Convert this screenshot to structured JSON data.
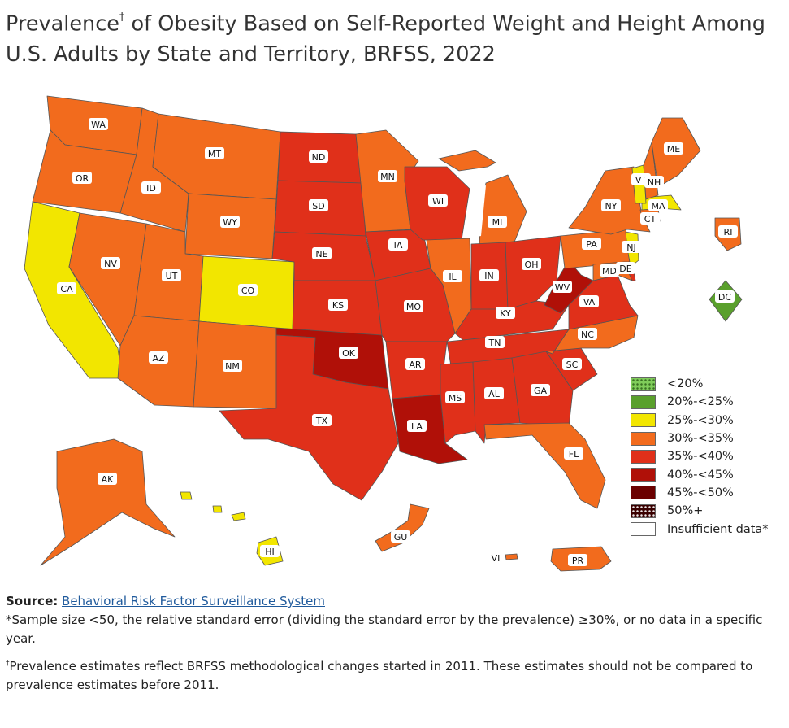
{
  "title": {
    "part1": "Prevalence",
    "dagger": "†",
    "part2": " of Obesity Based on Self-Reported Weight and Height Among U.S. Adults by State and Territory, BRFSS, 2022"
  },
  "legend": [
    {
      "label": "<20%",
      "color": "#7fcc5a",
      "pattern": "dots"
    },
    {
      "label": "20%-<25%",
      "color": "#5aa02c"
    },
    {
      "label": "25%-<30%",
      "color": "#f2e600"
    },
    {
      "label": "30%-<35%",
      "color": "#f26b1d"
    },
    {
      "label": "35%-<40%",
      "color": "#e0301a"
    },
    {
      "label": "40%-<45%",
      "color": "#b01008"
    },
    {
      "label": "45%-<50%",
      "color": "#6b0000"
    },
    {
      "label": "50%+",
      "color": "#3a0000",
      "pattern": "dots"
    },
    {
      "label": "Insufficient data*",
      "color": "#ffffff"
    }
  ],
  "states": [
    {
      "abbr": "WA",
      "category": "30%-<35%"
    },
    {
      "abbr": "OR",
      "category": "30%-<35%"
    },
    {
      "abbr": "CA",
      "category": "25%-<30%"
    },
    {
      "abbr": "NV",
      "category": "30%-<35%"
    },
    {
      "abbr": "ID",
      "category": "30%-<35%"
    },
    {
      "abbr": "MT",
      "category": "30%-<35%"
    },
    {
      "abbr": "WY",
      "category": "30%-<35%"
    },
    {
      "abbr": "UT",
      "category": "30%-<35%"
    },
    {
      "abbr": "CO",
      "category": "25%-<30%"
    },
    {
      "abbr": "AZ",
      "category": "30%-<35%"
    },
    {
      "abbr": "NM",
      "category": "30%-<35%"
    },
    {
      "abbr": "ND",
      "category": "35%-<40%"
    },
    {
      "abbr": "SD",
      "category": "35%-<40%"
    },
    {
      "abbr": "NE",
      "category": "35%-<40%"
    },
    {
      "abbr": "KS",
      "category": "35%-<40%"
    },
    {
      "abbr": "OK",
      "category": "40%-<45%"
    },
    {
      "abbr": "TX",
      "category": "35%-<40%"
    },
    {
      "abbr": "MN",
      "category": "30%-<35%"
    },
    {
      "abbr": "IA",
      "category": "35%-<40%"
    },
    {
      "abbr": "MO",
      "category": "35%-<40%"
    },
    {
      "abbr": "AR",
      "category": "35%-<40%"
    },
    {
      "abbr": "LA",
      "category": "40%-<45%"
    },
    {
      "abbr": "WI",
      "category": "35%-<40%"
    },
    {
      "abbr": "IL",
      "category": "30%-<35%"
    },
    {
      "abbr": "MI",
      "category": "30%-<35%"
    },
    {
      "abbr": "IN",
      "category": "35%-<40%"
    },
    {
      "abbr": "OH",
      "category": "35%-<40%"
    },
    {
      "abbr": "KY",
      "category": "35%-<40%"
    },
    {
      "abbr": "TN",
      "category": "35%-<40%"
    },
    {
      "abbr": "MS",
      "category": "35%-<40%"
    },
    {
      "abbr": "AL",
      "category": "35%-<40%"
    },
    {
      "abbr": "GA",
      "category": "35%-<40%"
    },
    {
      "abbr": "FL",
      "category": "30%-<35%"
    },
    {
      "abbr": "SC",
      "category": "35%-<40%"
    },
    {
      "abbr": "NC",
      "category": "30%-<35%"
    },
    {
      "abbr": "VA",
      "category": "35%-<40%"
    },
    {
      "abbr": "WV",
      "category": "40%-<45%"
    },
    {
      "abbr": "PA",
      "category": "30%-<35%"
    },
    {
      "abbr": "NY",
      "category": "30%-<35%"
    },
    {
      "abbr": "MD",
      "category": "30%-<35%"
    },
    {
      "abbr": "DE",
      "category": "35%-<40%"
    },
    {
      "abbr": "NJ",
      "category": "25%-<30%"
    },
    {
      "abbr": "CT",
      "category": "30%-<35%"
    },
    {
      "abbr": "RI",
      "category": "30%-<35%"
    },
    {
      "abbr": "MA",
      "category": "25%-<30%"
    },
    {
      "abbr": "VT",
      "category": "25%-<30%"
    },
    {
      "abbr": "NH",
      "category": "30%-<35%"
    },
    {
      "abbr": "ME",
      "category": "30%-<35%"
    },
    {
      "abbr": "DC",
      "category": "20%-<25%"
    },
    {
      "abbr": "AK",
      "category": "30%-<35%"
    },
    {
      "abbr": "HI",
      "category": "25%-<30%"
    },
    {
      "abbr": "GU",
      "category": "30%-<35%"
    },
    {
      "abbr": "VI",
      "category": "30%-<35%"
    },
    {
      "abbr": "PR",
      "category": "30%-<35%"
    }
  ],
  "notes": {
    "source_label": "Source:",
    "source_link": "Behavioral Risk Factor Surveillance System",
    "footnote1": "*Sample size <50, the relative standard error (dividing the standard error by the prevalence) ≥30%, or no data in a specific year.",
    "dagger": "†",
    "footnote2": "Prevalence estimates reflect BRFSS methodological changes started in 2011. These estimates should not be compared to prevalence estimates before 2011."
  }
}
